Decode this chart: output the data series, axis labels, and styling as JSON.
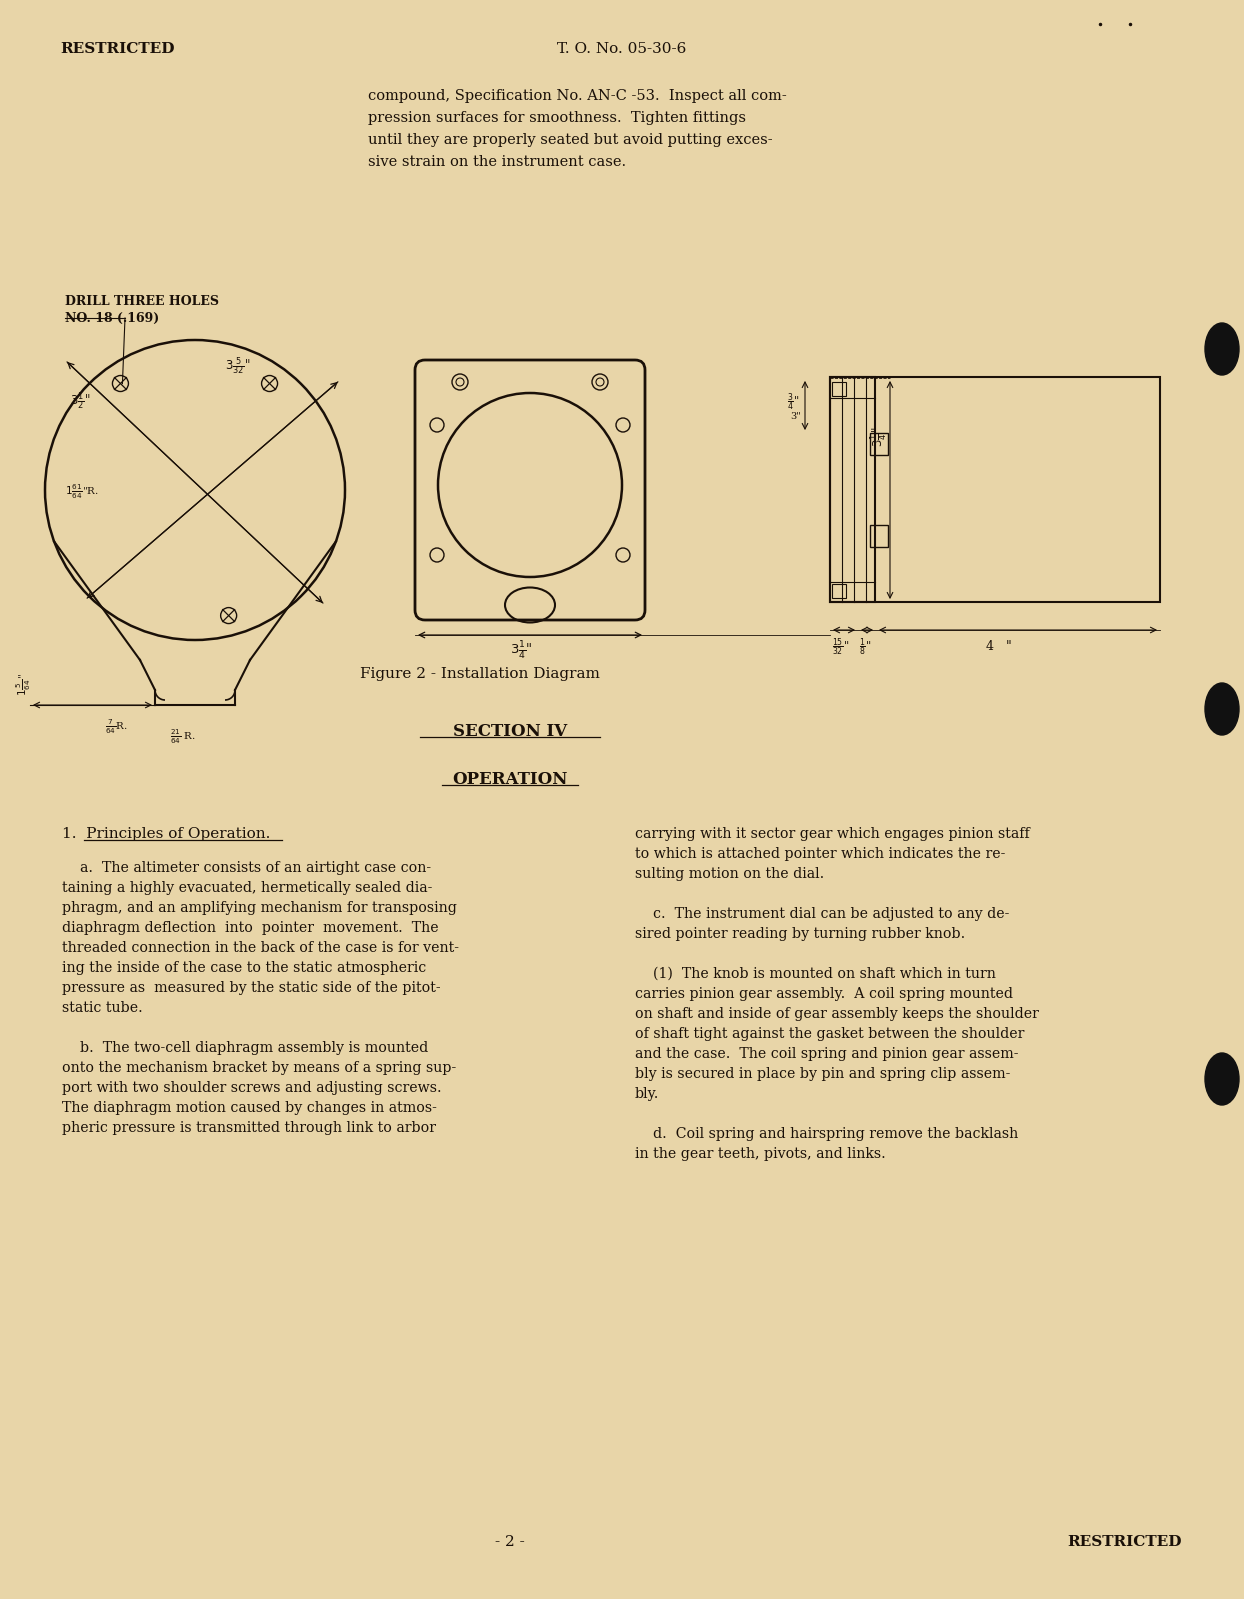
{
  "background_color": "#e8d5a8",
  "text_color": "#1a1008",
  "header_left": "RESTRICTED",
  "header_center": "T. O. No. 05-30-6",
  "footer_center": "- 2 -",
  "footer_right": "RESTRICTED",
  "top_paragraph_line1": "compound, Specification No. AN-C -53.  Inspect all com-",
  "top_paragraph_line2": "pression surfaces for smoothness.  Tighten fittings",
  "top_paragraph_line3": "until they are properly seated but avoid putting exces-",
  "top_paragraph_line4": "sive strain on the instrument case.",
  "figure_caption": "Figure 2 - Installation Diagram",
  "drill_label_line1": "DRILL THREE HOLES",
  "drill_label_line2": "NO. 18 (.169)",
  "section_heading": "SECTION IV",
  "operation_heading": "OPERATION",
  "principles_heading": "1.  Principles of Operation.",
  "left_col_para_a_line1": "    a.  The altimeter consists of an airtight case con-",
  "left_col_para_a_line2": "taining a highly evacuated, hermetically sealed dia-",
  "left_col_para_a_line3": "phragm, and an amplifying mechanism for transposing",
  "left_col_para_a_line4": "diaphragm deflection  into  pointer  movement.  The",
  "left_col_para_a_line5": "threaded connection in the back of the case is for vent-",
  "left_col_para_a_line6": "ing the inside of the case to the static atmospheric",
  "left_col_para_a_line7": "pressure as  measured by the static side of the pitot-",
  "left_col_para_a_line8": "static tube.",
  "left_col_para_b_line1": "    b.  The two-cell diaphragm assembly is mounted",
  "left_col_para_b_line2": "onto the mechanism bracket by means of a spring sup-",
  "left_col_para_b_line3": "port with two shoulder screws and adjusting screws.",
  "left_col_para_b_line4": "The diaphragm motion caused by changes in atmos-",
  "left_col_para_b_line5": "pheric pressure is transmitted through link to arbor",
  "right_col_line1": "carrying with it sector gear which engages pinion staff",
  "right_col_line2": "to which is attached pointer which indicates the re-",
  "right_col_line3": "sulting motion on the dial.",
  "right_col_line4": "    c.  The instrument dial can be adjusted to any de-",
  "right_col_line5": "sired pointer reading by turning rubber knob.",
  "right_col_line6": "    (1)  The knob is mounted on shaft which in turn",
  "right_col_line7": "carries pinion gear assembly.  A coil spring mounted",
  "right_col_line8": "on shaft and inside of gear assembly keeps the shoulder",
  "right_col_line9": "of shaft tight against the gasket between the shoulder",
  "right_col_line10": "and the case.  The coil spring and pinion gear assem-",
  "right_col_line11": "bly is secured in place by pin and spring clip assem-",
  "right_col_line12": "bly.",
  "right_col_line13": "    d.  Coil spring and hairspring remove the backlash",
  "right_col_line14": "in the gear teeth, pivots, and links."
}
